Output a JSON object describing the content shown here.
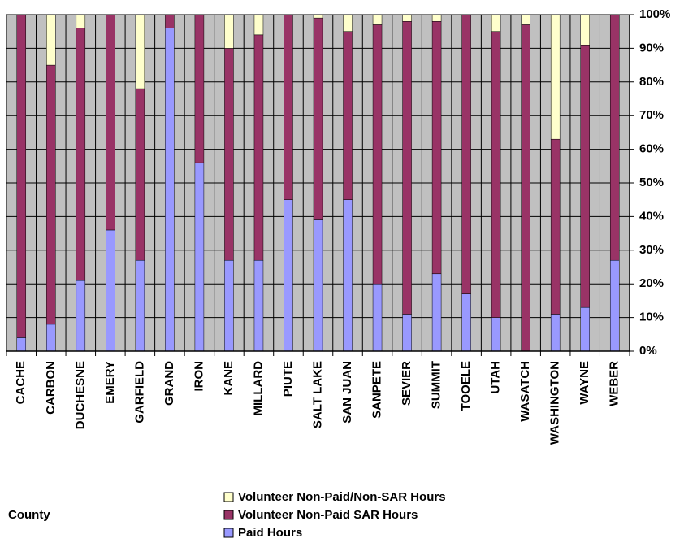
{
  "chart_data": {
    "type": "stacked_bar_100",
    "x_label": "County",
    "categories": [
      "CACHE",
      "CARBON",
      "DUCHESNE",
      "EMERY",
      "GARFIELD",
      "GRAND",
      "IRON",
      "KANE",
      "MILLARD",
      "PIUTE",
      "SALT LAKE",
      "SAN JUAN",
      "SANPETE",
      "SEVIER",
      "SUMMIT",
      "TOOELE",
      "UTAH",
      "WASATCH",
      "WASHINGTON",
      "WAYNE",
      "WEBER"
    ],
    "series": [
      {
        "name": "Paid Hours",
        "color": "#9999ff",
        "values": [
          4,
          8,
          21,
          36,
          27,
          96,
          56,
          27,
          27,
          45,
          39,
          45,
          20,
          11,
          23,
          17,
          10,
          0,
          11,
          13,
          27
        ]
      },
      {
        "name": "Volunteer Non-Paid SAR Hours",
        "color": "#993366",
        "values": [
          96,
          77,
          75,
          64,
          51,
          4,
          44,
          63,
          67,
          55,
          60,
          50,
          77,
          87,
          75,
          83,
          85,
          97,
          52,
          78,
          73
        ]
      },
      {
        "name": "Volunteer Non-Paid/Non-SAR Hours",
        "color": "#ffffcc",
        "values": [
          0,
          15,
          4,
          0,
          22,
          0,
          0,
          10,
          6,
          0,
          1,
          5,
          3,
          2,
          2,
          0,
          5,
          3,
          37,
          9,
          0
        ]
      }
    ],
    "ylim": [
      0,
      100
    ],
    "yticks": [
      {
        "value": 0,
        "label": "0%"
      },
      {
        "value": 10,
        "label": "10%"
      },
      {
        "value": 20,
        "label": "20%"
      },
      {
        "value": 30,
        "label": "30%"
      },
      {
        "value": 40,
        "label": "40%"
      },
      {
        "value": 50,
        "label": "50%"
      },
      {
        "value": 60,
        "label": "60%"
      },
      {
        "value": 70,
        "label": "70%"
      },
      {
        "value": 80,
        "label": "80%"
      },
      {
        "value": 90,
        "label": "90%"
      },
      {
        "value": 100,
        "label": "100%"
      }
    ],
    "grid": true,
    "plot_background": "#c0c0c0"
  }
}
